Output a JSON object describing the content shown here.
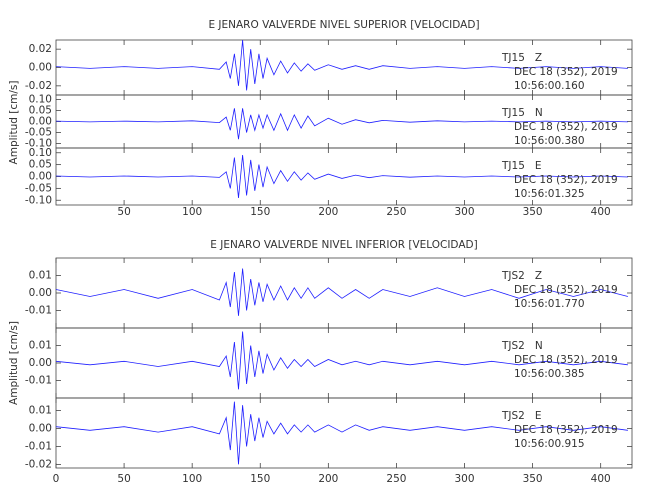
{
  "chart_data": [
    {
      "type": "line",
      "title": "E JENARO VALVERDE NIVEL SUPERIOR [VELOCIDAD]",
      "ylabel": "Amplitud [cm/s]",
      "xlim": [
        0,
        423
      ],
      "xticks": [
        50,
        100,
        150,
        200,
        250,
        300,
        350,
        400
      ],
      "x": [
        0,
        25,
        50,
        75,
        100,
        120,
        125,
        128,
        131,
        134,
        137,
        140,
        143,
        146,
        149,
        152,
        155,
        160,
        165,
        170,
        175,
        180,
        185,
        190,
        200,
        210,
        220,
        230,
        240,
        260,
        280,
        300,
        320,
        340,
        360,
        380,
        400,
        420
      ],
      "series": [
        {
          "name": "TJ15   Z",
          "date": "DEC 18 (352), 2019",
          "time": "10:56:00.160",
          "color": "#1f1fff",
          "ylim": [
            -0.03,
            0.03
          ],
          "yticks": [
            0.02,
            {
              "value": 0,
              "label": "0.00"
            },
            -0.02
          ],
          "values": [
            0.001,
            -0.001,
            0.001,
            -0.001,
            0.001,
            -0.002,
            0.006,
            -0.012,
            0.015,
            -0.02,
            0.03,
            -0.025,
            0.02,
            -0.018,
            0.015,
            -0.012,
            0.01,
            -0.008,
            0.007,
            -0.006,
            0.005,
            -0.004,
            0.004,
            -0.003,
            0.003,
            -0.002,
            0.002,
            -0.002,
            0.002,
            -0.001,
            0.001,
            -0.001,
            0.001,
            -0.001,
            0.001,
            -0.001,
            0.001,
            -0.001
          ]
        },
        {
          "name": "TJ15   N",
          "date": "DEC 18 (352), 2019",
          "time": "10:56:00.380",
          "color": "#1f1fff",
          "ylim": [
            -0.12,
            0.12
          ],
          "yticks": [
            {
              "value": 0.1,
              "label": "0.10"
            },
            0.05,
            {
              "value": 0,
              "label": "0.00"
            },
            -0.05,
            {
              "value": -0.1,
              "label": "-0.10"
            }
          ],
          "values": [
            0.002,
            -0.002,
            0.002,
            -0.002,
            0.003,
            -0.005,
            0.02,
            -0.04,
            0.06,
            -0.08,
            0.06,
            -0.05,
            0.03,
            -0.04,
            0.03,
            -0.03,
            0.03,
            -0.04,
            0.035,
            -0.04,
            0.03,
            -0.03,
            0.025,
            -0.02,
            0.015,
            -0.012,
            0.008,
            -0.006,
            0.005,
            -0.003,
            0.003,
            -0.002,
            0.002,
            -0.002,
            0.002,
            -0.002,
            0.002,
            -0.002
          ]
        },
        {
          "name": "TJ15   E",
          "date": "DEC 18 (352), 2019",
          "time": "10:56:01.325",
          "color": "#1f1fff",
          "ylim": [
            -0.12,
            0.12
          ],
          "yticks": [
            {
              "value": 0.1,
              "label": "0.10"
            },
            0.05,
            {
              "value": 0,
              "label": "0.00"
            },
            -0.05,
            {
              "value": -0.1,
              "label": "-0.10"
            }
          ],
          "values": [
            0.002,
            -0.002,
            0.002,
            -0.002,
            0.002,
            -0.004,
            0.02,
            -0.05,
            0.08,
            -0.09,
            0.09,
            -0.08,
            0.07,
            -0.06,
            0.05,
            -0.045,
            0.04,
            -0.03,
            0.025,
            -0.02,
            0.02,
            -0.015,
            0.015,
            -0.012,
            0.01,
            -0.008,
            0.006,
            -0.005,
            0.004,
            -0.003,
            0.002,
            -0.002,
            0.002,
            -0.002,
            0.002,
            -0.002,
            0.002,
            -0.002
          ]
        }
      ]
    },
    {
      "type": "line",
      "title": "E JENARO VALVERDE NIVEL INFERIOR [VELOCIDAD]",
      "ylabel": "Amplitud [cm/s]",
      "xlim": [
        0,
        423
      ],
      "xticks": [
        0,
        50,
        100,
        150,
        200,
        250,
        300,
        350,
        400
      ],
      "x": [
        0,
        25,
        50,
        75,
        100,
        120,
        125,
        128,
        131,
        134,
        137,
        140,
        143,
        146,
        149,
        152,
        155,
        160,
        165,
        170,
        175,
        180,
        185,
        190,
        200,
        210,
        220,
        230,
        240,
        260,
        280,
        300,
        320,
        340,
        360,
        380,
        400,
        420
      ],
      "series": [
        {
          "name": "TJS2   Z",
          "date": "DEC 18 (352), 2019",
          "time": "10:56:01.770",
          "color": "#1f1fff",
          "ylim": [
            -0.02,
            0.02
          ],
          "yticks": [
            0.01,
            {
              "value": 0,
              "label": "0.00"
            },
            -0.01
          ],
          "values": [
            0.002,
            -0.002,
            0.002,
            -0.003,
            0.002,
            -0.004,
            0.006,
            -0.008,
            0.012,
            -0.013,
            0.014,
            -0.01,
            0.008,
            -0.007,
            0.006,
            -0.005,
            0.005,
            -0.004,
            0.004,
            -0.004,
            0.003,
            -0.003,
            0.003,
            -0.003,
            0.003,
            -0.003,
            0.002,
            -0.003,
            0.002,
            -0.002,
            0.003,
            -0.002,
            0.002,
            -0.003,
            0.002,
            -0.002,
            0.002,
            -0.002
          ]
        },
        {
          "name": "TJS2   N",
          "date": "DEC 18 (352), 2019",
          "time": "10:56:00.385",
          "color": "#1f1fff",
          "ylim": [
            -0.02,
            0.02
          ],
          "yticks": [
            0.01,
            {
              "value": 0,
              "label": "0.00"
            },
            -0.01
          ],
          "values": [
            0.001,
            -0.001,
            0.001,
            -0.002,
            0.001,
            -0.002,
            0.004,
            -0.008,
            0.012,
            -0.015,
            0.018,
            -0.012,
            0.01,
            -0.008,
            0.007,
            -0.006,
            0.005,
            -0.004,
            0.003,
            -0.003,
            0.002,
            -0.002,
            0.002,
            -0.002,
            0.002,
            -0.001,
            0.001,
            -0.001,
            0.001,
            -0.001,
            0.001,
            -0.001,
            0.001,
            -0.001,
            0.001,
            -0.001,
            0.001,
            -0.001
          ]
        },
        {
          "name": "TJS2   E",
          "date": "DEC 18 (352), 2019",
          "time": "10:56:00.915",
          "color": "#1f1fff",
          "ylim": [
            -0.022,
            0.017
          ],
          "yticks": [
            0.01,
            {
              "value": 0,
              "label": "0.00"
            },
            -0.01,
            -0.02
          ],
          "values": [
            0.001,
            -0.001,
            0.001,
            -0.002,
            0.001,
            -0.003,
            0.006,
            -0.012,
            0.015,
            -0.02,
            0.013,
            -0.01,
            0.008,
            -0.007,
            0.006,
            -0.005,
            0.004,
            -0.003,
            0.003,
            -0.003,
            0.002,
            -0.002,
            0.002,
            -0.002,
            0.002,
            -0.002,
            0.002,
            -0.001,
            0.001,
            -0.001,
            0.001,
            -0.001,
            0.001,
            -0.001,
            0.001,
            -0.001,
            0.001,
            -0.001
          ]
        }
      ]
    }
  ]
}
